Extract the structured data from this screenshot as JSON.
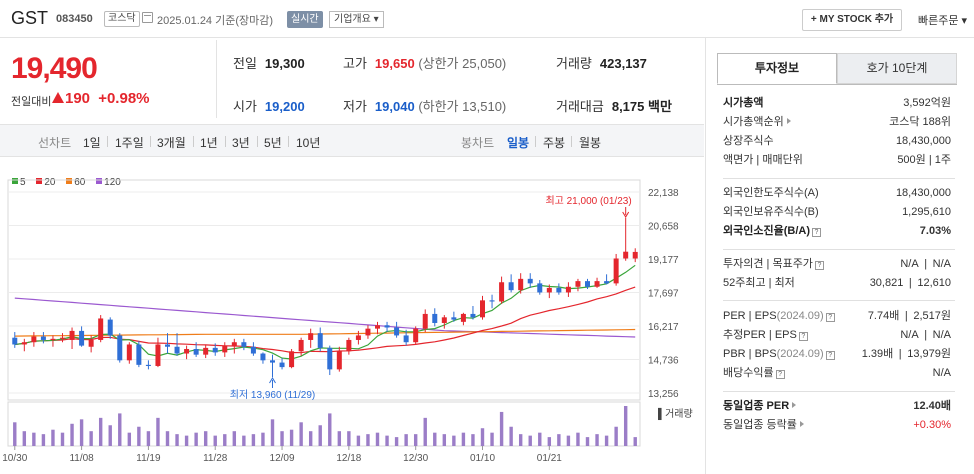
{
  "header": {
    "stock_name": "GST",
    "stock_code": "083450",
    "market_badge": "코스닥",
    "date_text": "2025.01.24 기준(장마감)",
    "realtime_label": "실시간",
    "overview_label": "기업개요 ▾",
    "my_stock_label": "+ MY STOCK 추가",
    "quick_order_label": "빠른주문 ▾"
  },
  "summary": {
    "price": "19,490",
    "change_label": "전일대비",
    "change_value": "190",
    "change_pct": "+0.98%",
    "prev_close_label": "전일",
    "prev_close": "19,300",
    "high_label": "고가",
    "high": "19,650",
    "upper_limit_label": "(상한가",
    "upper_limit": "25,050)",
    "volume_label": "거래량",
    "volume": "423,137",
    "open_label": "시가",
    "open": "19,200",
    "low_label": "저가",
    "low": "19,040",
    "lower_limit_label": "(하한가",
    "lower_limit": "13,510)",
    "amount_label": "거래대금",
    "amount": "8,175",
    "amount_unit": "백만"
  },
  "period_bar": {
    "line_chart": "선차트",
    "periods": [
      "1일",
      "1주일",
      "3개월",
      "1년",
      "3년",
      "5년",
      "10년"
    ],
    "candle_chart": "봉차트",
    "candle_periods": [
      "일봉",
      "주봉",
      "월봉"
    ],
    "active_candle": "일봉"
  },
  "chart_data": {
    "type": "candlestick",
    "title": "",
    "legend": [
      {
        "name": "5",
        "color": "#3aa53a"
      },
      {
        "name": "20",
        "color": "#e4262d"
      },
      {
        "name": "60",
        "color": "#ef7d1a"
      },
      {
        "name": "120",
        "color": "#9b59d0"
      }
    ],
    "y_ticks": [
      "22,138",
      "20,658",
      "19,177",
      "17,697",
      "16,217",
      "14,736",
      "13,256"
    ],
    "ylim": [
      13256,
      22138
    ],
    "x_ticks": [
      "10/30",
      "11/08",
      "11/19",
      "11/28",
      "12/09",
      "12/18",
      "12/30",
      "01/10",
      "01/21"
    ],
    "max_annotation": "최고 21,000 (01/23)",
    "min_annotation": "최저 13,960 (11/29)",
    "volume_label": "▌거래량",
    "colors": {
      "up": "#e4262d",
      "down": "#2f6fd6",
      "volume": "#9b7dc7"
    },
    "candles": [
      {
        "o": 15700,
        "h": 15950,
        "l": 15250,
        "c": 15400
      },
      {
        "o": 15400,
        "h": 15650,
        "l": 15100,
        "c": 15500
      },
      {
        "o": 15500,
        "h": 15950,
        "l": 15300,
        "c": 15750
      },
      {
        "o": 15750,
        "h": 15950,
        "l": 15450,
        "c": 15600
      },
      {
        "o": 15600,
        "h": 15800,
        "l": 15300,
        "c": 15650
      },
      {
        "o": 15650,
        "h": 15900,
        "l": 15500,
        "c": 15700
      },
      {
        "o": 15600,
        "h": 16150,
        "l": 15200,
        "c": 16000
      },
      {
        "o": 16000,
        "h": 16200,
        "l": 15300,
        "c": 15350
      },
      {
        "o": 15300,
        "h": 15800,
        "l": 15050,
        "c": 15600
      },
      {
        "o": 15600,
        "h": 16700,
        "l": 15500,
        "c": 16550
      },
      {
        "o": 16500,
        "h": 16600,
        "l": 15650,
        "c": 15800
      },
      {
        "o": 15800,
        "h": 15900,
        "l": 14600,
        "c": 14700
      },
      {
        "o": 14700,
        "h": 15500,
        "l": 14550,
        "c": 15400
      },
      {
        "o": 15400,
        "h": 15550,
        "l": 14400,
        "c": 14500
      },
      {
        "o": 14500,
        "h": 14700,
        "l": 14300,
        "c": 14450
      },
      {
        "o": 14450,
        "h": 15700,
        "l": 14400,
        "c": 15400
      },
      {
        "o": 15400,
        "h": 15900,
        "l": 15000,
        "c": 15300
      },
      {
        "o": 15300,
        "h": 15900,
        "l": 14900,
        "c": 15000
      },
      {
        "o": 15000,
        "h": 15350,
        "l": 14750,
        "c": 15200
      },
      {
        "o": 15200,
        "h": 15500,
        "l": 14850,
        "c": 14950
      },
      {
        "o": 14950,
        "h": 15400,
        "l": 14800,
        "c": 15250
      },
      {
        "o": 15250,
        "h": 15450,
        "l": 14900,
        "c": 15050
      },
      {
        "o": 15050,
        "h": 15500,
        "l": 14850,
        "c": 15350
      },
      {
        "o": 15350,
        "h": 15650,
        "l": 15000,
        "c": 15500
      },
      {
        "o": 15500,
        "h": 15650,
        "l": 15150,
        "c": 15300
      },
      {
        "o": 15300,
        "h": 15500,
        "l": 14900,
        "c": 15000
      },
      {
        "o": 15000,
        "h": 15050,
        "l": 14550,
        "c": 14700
      },
      {
        "o": 14700,
        "h": 14950,
        "l": 13960,
        "c": 14600
      },
      {
        "o": 14600,
        "h": 14800,
        "l": 14300,
        "c": 14400
      },
      {
        "o": 14400,
        "h": 15200,
        "l": 14350,
        "c": 15100
      },
      {
        "o": 15100,
        "h": 15700,
        "l": 14900,
        "c": 15600
      },
      {
        "o": 15600,
        "h": 16100,
        "l": 15250,
        "c": 15900
      },
      {
        "o": 15900,
        "h": 16150,
        "l": 15100,
        "c": 15250
      },
      {
        "o": 15250,
        "h": 15350,
        "l": 14050,
        "c": 14300
      },
      {
        "o": 14300,
        "h": 15300,
        "l": 14200,
        "c": 15100
      },
      {
        "o": 15100,
        "h": 15700,
        "l": 14950,
        "c": 15600
      },
      {
        "o": 15600,
        "h": 16000,
        "l": 15400,
        "c": 15800
      },
      {
        "o": 15800,
        "h": 16250,
        "l": 15650,
        "c": 16100
      },
      {
        "o": 16100,
        "h": 16400,
        "l": 15850,
        "c": 16250
      },
      {
        "o": 16250,
        "h": 16400,
        "l": 15950,
        "c": 16150
      },
      {
        "o": 16150,
        "h": 16400,
        "l": 15700,
        "c": 15800
      },
      {
        "o": 15800,
        "h": 16050,
        "l": 15350,
        "c": 15500
      },
      {
        "o": 15500,
        "h": 16200,
        "l": 15400,
        "c": 16100
      },
      {
        "o": 16100,
        "h": 16950,
        "l": 15950,
        "c": 16750
      },
      {
        "o": 16750,
        "h": 17000,
        "l": 16200,
        "c": 16350
      },
      {
        "o": 16350,
        "h": 16700,
        "l": 16100,
        "c": 16600
      },
      {
        "o": 16600,
        "h": 16850,
        "l": 16400,
        "c": 16500
      },
      {
        "o": 16400,
        "h": 16800,
        "l": 16250,
        "c": 16750
      },
      {
        "o": 16750,
        "h": 17100,
        "l": 16500,
        "c": 16600
      },
      {
        "o": 16600,
        "h": 17550,
        "l": 16500,
        "c": 17350
      },
      {
        "o": 17350,
        "h": 17600,
        "l": 17000,
        "c": 17300
      },
      {
        "o": 17300,
        "h": 18400,
        "l": 17200,
        "c": 18150
      },
      {
        "o": 18150,
        "h": 18500,
        "l": 17700,
        "c": 17800
      },
      {
        "o": 17800,
        "h": 18550,
        "l": 17650,
        "c": 18300
      },
      {
        "o": 18300,
        "h": 18550,
        "l": 17900,
        "c": 18100
      },
      {
        "o": 18100,
        "h": 18250,
        "l": 17600,
        "c": 17700
      },
      {
        "o": 17700,
        "h": 18050,
        "l": 17450,
        "c": 17900
      },
      {
        "o": 17900,
        "h": 18100,
        "l": 17600,
        "c": 17700
      },
      {
        "o": 17700,
        "h": 18150,
        "l": 17500,
        "c": 17950
      },
      {
        "o": 17950,
        "h": 18300,
        "l": 17750,
        "c": 18200
      },
      {
        "o": 18200,
        "h": 18300,
        "l": 17850,
        "c": 17950
      },
      {
        "o": 17950,
        "h": 18350,
        "l": 17900,
        "c": 18200
      },
      {
        "o": 18200,
        "h": 18500,
        "l": 18050,
        "c": 18100
      },
      {
        "o": 18100,
        "h": 19400,
        "l": 18000,
        "c": 19200
      },
      {
        "o": 19200,
        "h": 21000,
        "l": 19100,
        "c": 19500
      },
      {
        "o": 19200,
        "h": 19650,
        "l": 19040,
        "c": 19490
      }
    ],
    "volume": [
      1.6,
      1.0,
      0.9,
      0.8,
      1.1,
      0.9,
      1.5,
      1.8,
      1.0,
      1.9,
      1.4,
      2.2,
      0.9,
      1.3,
      1.0,
      1.9,
      1.0,
      0.8,
      0.7,
      0.9,
      1.0,
      0.7,
      0.8,
      1.0,
      0.7,
      0.8,
      0.9,
      1.8,
      1.0,
      1.1,
      1.6,
      1.0,
      1.4,
      2.2,
      1.0,
      1.0,
      0.7,
      0.8,
      0.9,
      0.7,
      0.6,
      0.8,
      0.8,
      1.9,
      0.9,
      0.8,
      0.7,
      0.9,
      0.8,
      1.2,
      0.9,
      2.3,
      1.3,
      0.8,
      0.7,
      0.9,
      0.6,
      0.8,
      0.7,
      0.9,
      0.6,
      0.8,
      0.7,
      1.3,
      2.7,
      0.6
    ]
  },
  "invest_panel": {
    "tabs": [
      "투자정보",
      "호가 10단계"
    ],
    "rows1": [
      {
        "k": "시가총액",
        "v": "3,592억원"
      },
      {
        "k": "시가총액순위",
        "v": "코스닥 188위"
      },
      {
        "k": "상장주식수",
        "v": "18,430,000"
      },
      {
        "k": "액면가 | 매매단위",
        "v": "500원 | 1주"
      }
    ],
    "rows2": [
      {
        "k": "외국인한도주식수(A)",
        "v": "18,430,000"
      },
      {
        "k": "외국인보유주식수(B)",
        "v": "1,295,610"
      },
      {
        "k": "외국인소진율(B/A)",
        "v": "7.03%"
      }
    ],
    "rows3": [
      {
        "k": "투자의견 | 목표주가",
        "v1": "N/A",
        "v2": "N/A"
      },
      {
        "k": "52주최고 | 최저",
        "v1": "30,821",
        "v2": "12,610"
      }
    ],
    "rows4": [
      {
        "k": "PER | EPS",
        "note": "(2024.09)",
        "v1": "7.74배",
        "v2": "2,517원"
      },
      {
        "k": "추정PER | EPS",
        "note": "",
        "v1": "N/A",
        "v2": "N/A"
      },
      {
        "k": "PBR | BPS",
        "note": "(2024.09)",
        "v1": "1.39배",
        "v2": "13,979원"
      },
      {
        "k": "배당수익률",
        "note": "",
        "v1": "",
        "v2": "N/A"
      }
    ],
    "rows5": [
      {
        "k": "동일업종 PER",
        "v": "12.40배"
      },
      {
        "k": "동일업종 등락률",
        "v": "+0.30%"
      }
    ]
  }
}
